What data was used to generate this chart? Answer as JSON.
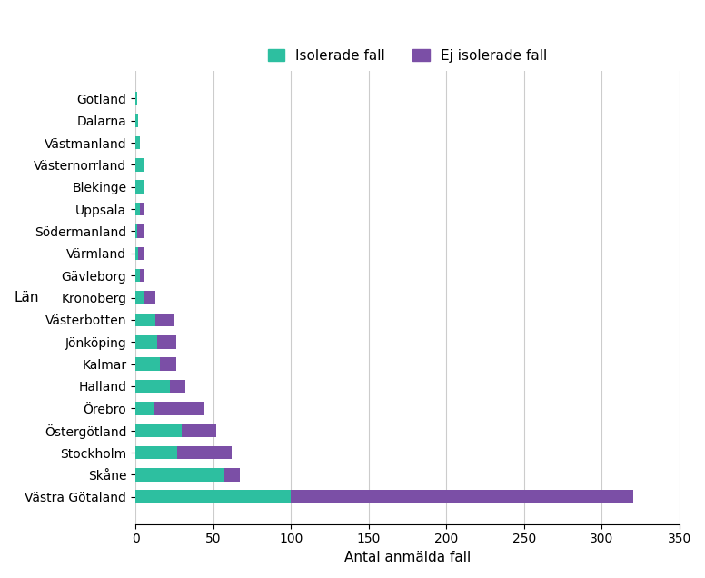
{
  "categories": [
    "Gotland",
    "Dalarna",
    "Västmanland",
    "Västernorrland",
    "Blekinge",
    "Uppsala",
    "Södermanland",
    "Värmland",
    "Gävleborg",
    "Kronoberg",
    "Västerbotten",
    "Jönköping",
    "Kalmar",
    "Halland",
    "Örebro",
    "Östergötland",
    "Stockholm",
    "Skåne",
    "Västra Götaland"
  ],
  "isolerade": [
    1,
    2,
    3,
    5,
    6,
    3,
    1,
    2,
    3,
    5,
    13,
    14,
    16,
    22,
    12,
    30,
    27,
    57,
    100
  ],
  "ej_isolerade": [
    0,
    0,
    0,
    0,
    0,
    3,
    5,
    4,
    3,
    8,
    12,
    12,
    10,
    10,
    32,
    22,
    35,
    10,
    220
  ],
  "color_isolerade": "#2dbfa0",
  "color_ej_isolerade": "#7b4fa6",
  "xlabel": "Antal anmälda fall",
  "ylabel": "Län",
  "legend_isolerade": "Isolerade fall",
  "legend_ej_isolerade": "Ej isolerade fall",
  "xlim": [
    0,
    350
  ],
  "xticks": [
    0,
    50,
    100,
    150,
    200,
    250,
    300,
    350
  ],
  "background_color": "#ffffff",
  "grid_color": "#cccccc"
}
